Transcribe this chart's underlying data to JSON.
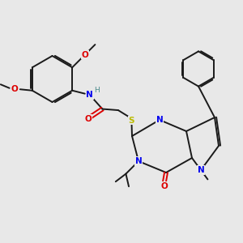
{
  "bg_color": "#e8e8e8",
  "bond_color": "#1a1a1a",
  "N_color": "#0000ee",
  "O_color": "#dd0000",
  "S_color": "#bbbb00",
  "H_color": "#4a8a8a",
  "lw": 1.4,
  "fs": 7.5,
  "xlim": [
    0,
    10
  ],
  "ylim": [
    0,
    10
  ]
}
